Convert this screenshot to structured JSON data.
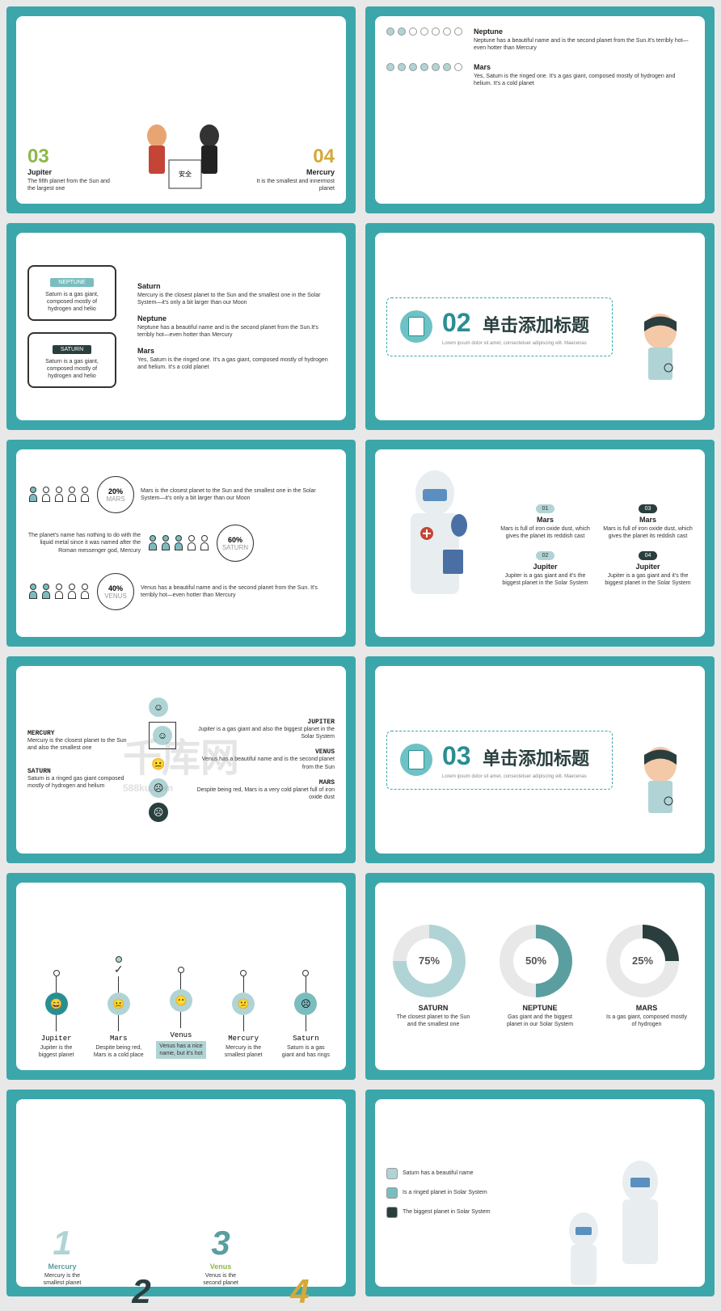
{
  "watermark": {
    "main": "千库网",
    "sub": "588ku.com"
  },
  "colors": {
    "teal": "#3ba7ab",
    "teal_light": "#7bbdbf",
    "teal_bg": "#b0d4d5",
    "dark": "#2a3e3e",
    "green": "#8cb84a",
    "yellow": "#d4a938"
  },
  "slide1": {
    "left": {
      "num": "03",
      "title": "Jupiter",
      "desc": "The fifth planet from the Sun and the largest one"
    },
    "right": {
      "num": "04",
      "title": "Mercury",
      "desc": "It is the smallest and innermost planet"
    }
  },
  "slide2": {
    "neptune": {
      "title": "Neptune",
      "desc": "Neptune has a beautiful name and is the second planet from the Sun.It's terribly hot—even hotter than Mercury"
    },
    "mars": {
      "title": "Mars",
      "desc": "Yes, Saturn is the ringed one. It's a gas giant, composed mostly of hydrogen and helium. It's a cold planet"
    }
  },
  "slide3": {
    "box1": {
      "label": "NEPTUNE",
      "desc": "Saturn is a gas giant, composed mostly of hydrogen and helio"
    },
    "box2": {
      "label": "SATURN",
      "desc": "Saturn is a gas giant, composed mostly of hydrogen and helio"
    },
    "saturn": {
      "title": "Saturn",
      "desc": "Mercury is the closest planet to the Sun and the smallest one in the Solar System—it's only a bit larger than our Moon"
    },
    "neptune": {
      "title": "Neptune",
      "desc": "Neptune has a beautiful name and is the second planet from the Sun.It's terribly hot—even hotter than Mercury"
    },
    "mars": {
      "title": "Mars",
      "desc": "Yes, Saturn is the ringed one. It's a gas giant, composed mostly of hydrogen and helium. It's a cold planet"
    }
  },
  "slide4": {
    "num": "02",
    "title": "单击添加标题",
    "subtitle": "Lorem ipsum dolor sit amet, consectetuer adipiscing elit. Maecenas"
  },
  "slide5": {
    "r1": {
      "pct": "20%",
      "label": "MARS",
      "filled": 1,
      "desc": "Mars is the closest planet to the Sun and the smallest one in the Solar System—it's only a bit larger than our Moon"
    },
    "r2": {
      "pct": "60%",
      "label": "SATURN",
      "filled": 3,
      "left_desc": "The planet's name has nothing to do with the liquid metal since it was named after the Roman messenger god, Mercury"
    },
    "r3": {
      "pct": "40%",
      "label": "VENUS",
      "filled": 2,
      "desc": "Venus has a beautiful name and is the second planet from the Sun. It's terribly hot—even hotter than Mercury"
    }
  },
  "slide6": {
    "items": [
      {
        "num": "01",
        "title": "Mars",
        "desc": "Mars is full of iron oxide dust, which gives the planet its reddish cast"
      },
      {
        "num": "03",
        "title": "Mars",
        "desc": "Mars is full of iron oxide dust, which gives the planet its reddish cast"
      },
      {
        "num": "02",
        "title": "Jupiter",
        "desc": "Jupiter is a gas giant and it's the biggest planet in the Solar System"
      },
      {
        "num": "04",
        "title": "Jupiter",
        "desc": "Jupiter is a gas giant and it's the biggest planet in the Solar System"
      }
    ]
  },
  "slide7": {
    "left1": {
      "title": "MERCURY",
      "desc": "Mercury is the closest planet to the Sun and also the smallest one"
    },
    "left2": {
      "title": "SATURN",
      "desc": "Saturn is a ringed gas giant composed mostly of hydrogen and helium"
    },
    "right": [
      {
        "title": "JUPITER",
        "desc": "Jupiter is a gas giant and also the biggest planet in the Solar System"
      },
      {
        "title": "VENUS",
        "desc": "Venus has a beautiful name and is the second planet from the Sun"
      },
      {
        "title": "MARS",
        "desc": "Despite being red, Mars is a very cold planet full of iron oxide dust"
      }
    ]
  },
  "slide8": {
    "num": "03",
    "title": "单击添加标题",
    "subtitle": "Lorem ipsum dolor sit amet, consectetuer adipiscing elit. Maecenas"
  },
  "slide9": {
    "cols": [
      {
        "name": "Jupiter",
        "desc": "Jupiter is the biggest planet",
        "face_color": "#2a8e91",
        "highlight": false
      },
      {
        "name": "Mars",
        "desc": "Despite being red, Mars is a cold place",
        "face_color": "#b0d4d5",
        "highlight": false,
        "check": true
      },
      {
        "name": "Venus",
        "desc": "Venus has a nice name, but it's hot",
        "face_color": "#b0d4d5",
        "highlight": true
      },
      {
        "name": "Mercury",
        "desc": "Mercury is the smallest planet",
        "face_color": "#b0d4d5",
        "highlight": false
      },
      {
        "name": "Saturn",
        "desc": "Saturn is a gas giant and has rings",
        "face_color": "#7bbdbf",
        "highlight": false
      }
    ]
  },
  "slide10": {
    "donuts": [
      {
        "pct": "75%",
        "title": "SATURN",
        "desc": "The closest planet to the Sun and the smallest one",
        "fg": "#b0d4d5",
        "deg": 270
      },
      {
        "pct": "50%",
        "title": "NEPTUNE",
        "desc": "Gas giant and the biggest planet in our Solar System",
        "fg": "#5a9ea0",
        "deg": 180
      },
      {
        "pct": "25%",
        "title": "MARS",
        "desc": "Is a gas giant, composed mostly of hydrogen",
        "fg": "#2a3e3e",
        "deg": 90
      }
    ]
  },
  "slide11": {
    "items": [
      {
        "num": "1",
        "color": "#b0d4d5",
        "title": "Mercury",
        "title_color": "#5a9ea0",
        "desc": "Mercury is the smallest planet"
      },
      {
        "num": "2",
        "color": "#2a3e3e"
      },
      {
        "num": "3",
        "color": "#5a9ea0",
        "title": "Venus",
        "title_color": "#8cb84a",
        "desc": "Venus is the second planet"
      },
      {
        "num": "4",
        "color": "#d4a938"
      }
    ]
  },
  "slide12": {
    "legend": [
      {
        "color": "#b0d4d5",
        "text": "Saturn has a beautiful name"
      },
      {
        "color": "#7bbdbf",
        "text": "Is a ringed planet in Solar System"
      },
      {
        "color": "#2a3e3e",
        "text": "The biggest planet in Solar System"
      }
    ]
  }
}
